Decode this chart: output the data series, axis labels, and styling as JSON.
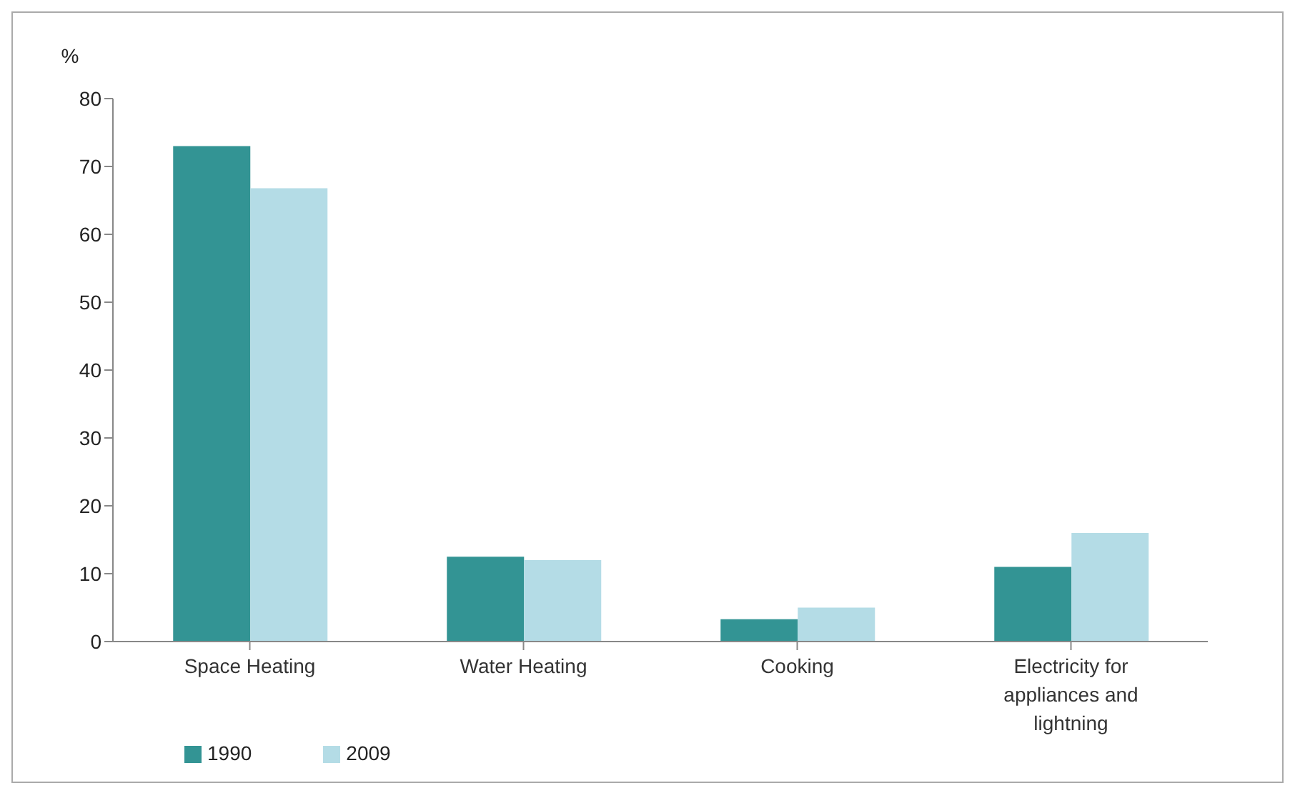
{
  "chart_data": {
    "type": "bar",
    "ylabel": "%",
    "categories": [
      "Space Heating",
      "Water Heating",
      "Cooking",
      "Electricity for appliances and lightning"
    ],
    "series": [
      {
        "name": "1990",
        "color": "#339494",
        "values": [
          73,
          12.5,
          3.3,
          11
        ]
      },
      {
        "name": "2009",
        "color": "#b4dce6",
        "values": [
          66.8,
          12,
          5,
          16
        ]
      }
    ],
    "ylim": [
      0,
      80
    ],
    "yticks": [
      0,
      10,
      20,
      30,
      40,
      50,
      60,
      70,
      80
    ],
    "grid": false,
    "legend": "bottom left"
  }
}
